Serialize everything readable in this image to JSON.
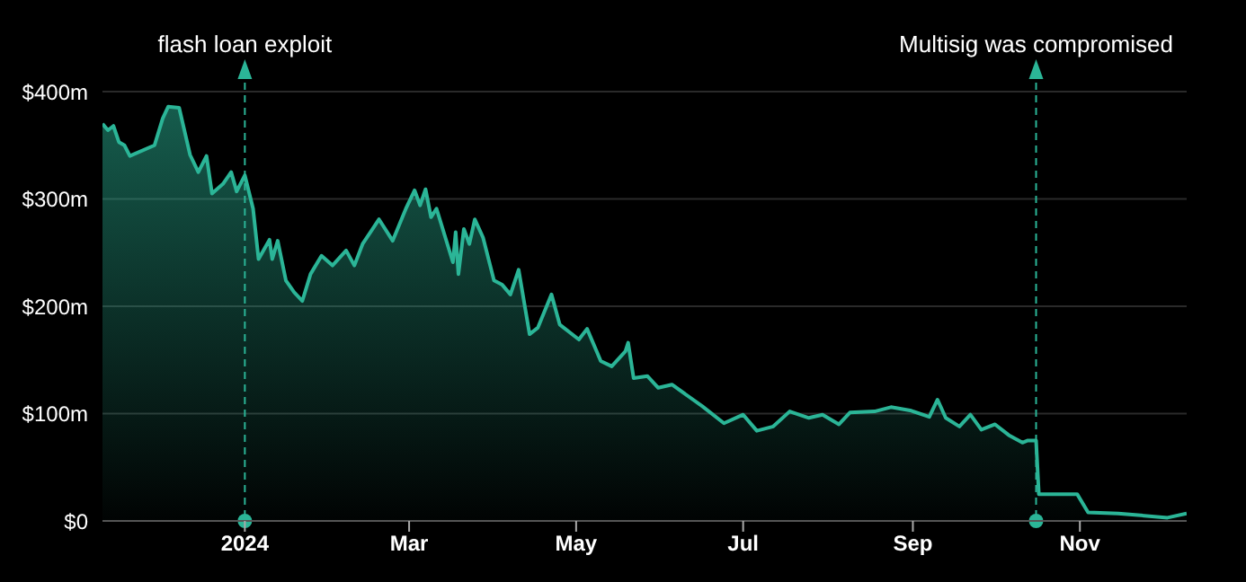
{
  "chart_data": {
    "type": "area",
    "x": [
      "2023-11-10",
      "2023-11-12",
      "2023-11-14",
      "2023-11-16",
      "2023-11-18",
      "2023-11-20",
      "2023-11-29",
      "2023-12-02",
      "2023-12-04",
      "2023-12-08",
      "2023-12-12",
      "2023-12-15",
      "2023-12-18",
      "2023-12-20",
      "2023-12-24",
      "2023-12-27",
      "2023-12-29",
      "2024-01-01",
      "2024-01-04",
      "2024-01-06",
      "2024-01-10",
      "2024-01-11",
      "2024-01-13",
      "2024-01-16",
      "2024-01-19",
      "2024-01-22",
      "2024-01-25",
      "2024-01-29",
      "2024-02-02",
      "2024-02-07",
      "2024-02-10",
      "2024-02-13",
      "2024-02-19",
      "2024-02-24",
      "2024-02-29",
      "2024-03-03",
      "2024-03-05",
      "2024-03-07",
      "2024-03-09",
      "2024-03-11",
      "2024-03-17",
      "2024-03-18",
      "2024-03-19",
      "2024-03-21",
      "2024-03-23",
      "2024-03-25",
      "2024-03-28",
      "2024-04-01",
      "2024-04-04",
      "2024-04-07",
      "2024-04-10",
      "2024-04-14",
      "2024-04-17",
      "2024-04-22",
      "2024-04-25",
      "2024-05-02",
      "2024-05-05",
      "2024-05-10",
      "2024-05-14",
      "2024-05-19",
      "2024-05-20",
      "2024-05-22",
      "2024-05-27",
      "2024-05-31",
      "2024-06-05",
      "2024-06-16",
      "2024-06-24",
      "2024-07-01",
      "2024-07-06",
      "2024-07-12",
      "2024-07-18",
      "2024-07-25",
      "2024-07-30",
      "2024-08-05",
      "2024-08-09",
      "2024-08-18",
      "2024-08-24",
      "2024-08-31",
      "2024-09-07",
      "2024-09-10",
      "2024-09-13",
      "2024-09-18",
      "2024-09-22",
      "2024-09-26",
      "2024-10-01",
      "2024-10-06",
      "2024-10-11",
      "2024-10-13",
      "2024-10-16",
      "2024-10-17",
      "2024-10-31",
      "2024-11-04",
      "2024-11-15",
      "2024-12-03",
      "2024-12-10"
    ],
    "series": [
      {
        "color": "#2bb597",
        "values": [
          370,
          364,
          368,
          353,
          350,
          340,
          350,
          375,
          386,
          385,
          341,
          325,
          340,
          305,
          314,
          325,
          307,
          322,
          291,
          244,
          262,
          244,
          261,
          224,
          213,
          205,
          230,
          247,
          238,
          252,
          238,
          258,
          281,
          261,
          292,
          308,
          294,
          309,
          283,
          291,
          241,
          269,
          230,
          272,
          258,
          281,
          264,
          224,
          220,
          211,
          234,
          174,
          180,
          211,
          183,
          169,
          179,
          149,
          144,
          158,
          166,
          133,
          135,
          124,
          127,
          107,
          91,
          99,
          84,
          88,
          102,
          96,
          99,
          90,
          101,
          102,
          106,
          103,
          97,
          113,
          96,
          88,
          99,
          85,
          90,
          80,
          73,
          75,
          75,
          25,
          25,
          8,
          7,
          3,
          7
        ]
      }
    ],
    "xlim": [
      "2023-11-10",
      "2024-12-10"
    ],
    "xticks": [
      {
        "value": "2024-01-01",
        "label": "2024"
      },
      {
        "value": "2024-03-01",
        "label": "Mar"
      },
      {
        "value": "2024-05-01",
        "label": "May"
      },
      {
        "value": "2024-07-01",
        "label": "Jul"
      },
      {
        "value": "2024-09-01",
        "label": "Sep"
      },
      {
        "value": "2024-11-01",
        "label": "Nov"
      }
    ],
    "ylim": [
      0,
      400
    ],
    "yticks": [
      {
        "value": 0,
        "label": "$0"
      },
      {
        "value": 100,
        "label": "$100m"
      },
      {
        "value": 200,
        "label": "$200m"
      },
      {
        "value": 300,
        "label": "$300m"
      },
      {
        "value": 400,
        "label": "$400m"
      }
    ],
    "grid": "y",
    "ref_lines": [
      {
        "axis": "x",
        "value": "2024-01-01",
        "label": "flash loan exploit",
        "color": "#2bb597",
        "line_style": "dashed"
      },
      {
        "axis": "x",
        "value": "2024-10-16",
        "label": "Multisig was compromised",
        "color": "#2bb597",
        "line_style": "dashed"
      }
    ]
  }
}
